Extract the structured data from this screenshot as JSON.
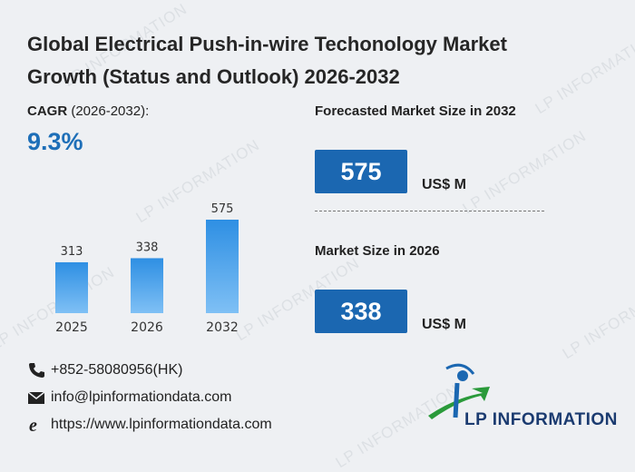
{
  "header": {
    "title_line1": "Global Electrical Push-in-wire Techonology Market",
    "title_line2": "Growth (Status and Outlook) 2026-2032"
  },
  "cagr": {
    "label_bold": "CAGR",
    "label_period": " (2026-2032):",
    "value": "9.3%"
  },
  "forecast": {
    "label": "Forecasted Market Size in 2032",
    "value": "575",
    "unit": "US$ M"
  },
  "current": {
    "label": "Market Size in 2026",
    "value": "338",
    "unit": "US$ M"
  },
  "contacts": {
    "phone": "+852-58080956(HK)",
    "email": "info@lpinformationdata.com",
    "website": "https://www.lpinformationdata.com"
  },
  "brand": {
    "name": "LP INFORMATION",
    "watermark": "LP INFORMATION"
  },
  "colors": {
    "accent": "#1e6fb8",
    "box": "#1b67b1",
    "bar_top": "#2e8fe3",
    "bar_bottom": "#7fc0f5"
  },
  "chart_data": {
    "type": "bar",
    "categories": [
      "2025",
      "2026",
      "2032"
    ],
    "values": [
      313,
      338,
      575
    ],
    "ylim": [
      0,
      600
    ]
  }
}
